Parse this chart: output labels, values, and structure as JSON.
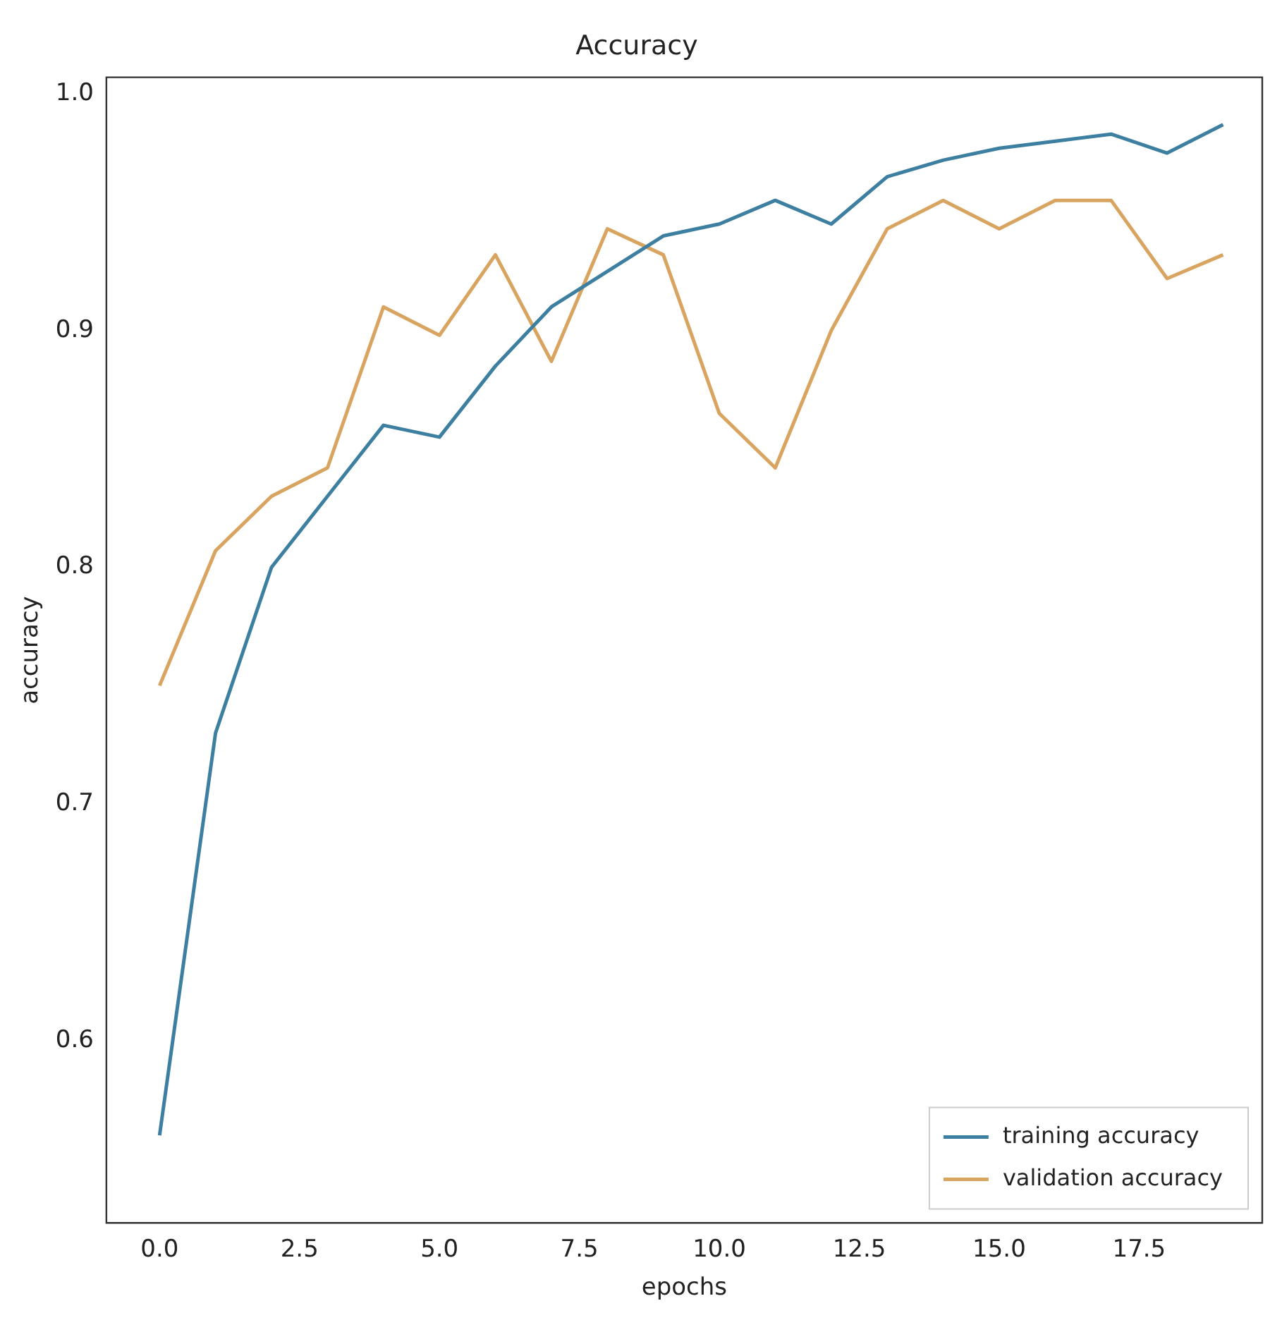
{
  "chart_data": {
    "type": "line",
    "title": "Accuracy",
    "xlabel": "epochs",
    "ylabel": "accuracy",
    "x": [
      0,
      1,
      2,
      3,
      4,
      5,
      6,
      7,
      8,
      9,
      10,
      11,
      12,
      13,
      14,
      15,
      16,
      17,
      18,
      19
    ],
    "series": [
      {
        "name": "training accuracy",
        "color": "#3d7fa0",
        "values": [
          0.56,
          0.73,
          0.8,
          0.83,
          0.86,
          0.855,
          0.885,
          0.91,
          0.925,
          0.94,
          0.945,
          0.955,
          0.945,
          0.965,
          0.972,
          0.977,
          0.98,
          0.983,
          0.975,
          0.987
        ]
      },
      {
        "name": "validation accuracy",
        "color": "#d8a460",
        "values": [
          0.75,
          0.807,
          0.83,
          0.842,
          0.91,
          0.898,
          0.932,
          0.887,
          0.943,
          0.932,
          0.865,
          0.842,
          0.9,
          0.943,
          0.955,
          0.943,
          0.955,
          0.955,
          0.922,
          0.932
        ]
      }
    ],
    "xlim": [
      -0.95,
      19.7
    ],
    "xticks": [
      {
        "value": 0,
        "label": "0.0"
      },
      {
        "value": 2.5,
        "label": "2.5"
      },
      {
        "value": 5,
        "label": "5.0"
      },
      {
        "value": 7.5,
        "label": "7.5"
      },
      {
        "value": 10,
        "label": "10.0"
      },
      {
        "value": 12.5,
        "label": "12.5"
      },
      {
        "value": 15,
        "label": "15.0"
      },
      {
        "value": 17.5,
        "label": "17.5"
      }
    ],
    "ylim": [
      0.523,
      1.007
    ],
    "yticks": [
      0.6,
      0.7,
      0.8,
      0.9,
      {
        "value": 1,
        "label": "1.0"
      }
    ],
    "grid": false,
    "legend": "bottom right",
    "marker": "none",
    "line_style": "solid"
  }
}
